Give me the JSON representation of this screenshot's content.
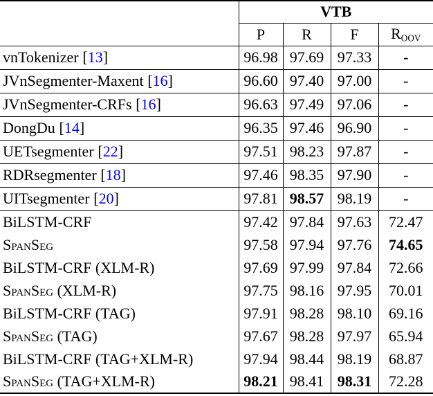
{
  "table": {
    "group_header": "VTB",
    "subcolumns": {
      "p": "P",
      "r": "R",
      "f": "F",
      "roov_base": "R",
      "roov_sub": "OOV"
    },
    "cite_open": "[",
    "cite_close": "]",
    "colors": {
      "citation_link": "#0000FF",
      "text": "#000000",
      "rule": "#000000"
    },
    "rows": [
      {
        "name": "vnTokenizer",
        "cite": "13",
        "sc": false,
        "section": 1,
        "vals": [
          "96.98",
          "97.69",
          "97.33",
          "-"
        ],
        "bold": [
          false,
          false,
          false,
          false
        ]
      },
      {
        "name": "JVnSegmenter-Maxent",
        "cite": "16",
        "sc": false,
        "section": 1,
        "vals": [
          "96.60",
          "97.40",
          "97.00",
          "-"
        ],
        "bold": [
          false,
          false,
          false,
          false
        ]
      },
      {
        "name": "JVnSegmenter-CRFs",
        "cite": "16",
        "sc": false,
        "section": 1,
        "vals": [
          "96.63",
          "97.49",
          "97.06",
          "-"
        ],
        "bold": [
          false,
          false,
          false,
          false
        ]
      },
      {
        "name": "DongDu",
        "cite": "14",
        "sc": false,
        "section": 1,
        "vals": [
          "96.35",
          "97.46",
          "96.90",
          "-"
        ],
        "bold": [
          false,
          false,
          false,
          false
        ]
      },
      {
        "name": "UETsegmenter",
        "cite": "22",
        "sc": false,
        "section": 1,
        "vals": [
          "97.51",
          "98.23",
          "97.87",
          "-"
        ],
        "bold": [
          false,
          false,
          false,
          false
        ]
      },
      {
        "name": "RDRsegmenter",
        "cite": "18",
        "sc": false,
        "section": 1,
        "vals": [
          "97.46",
          "98.35",
          "97.90",
          "-"
        ],
        "bold": [
          false,
          false,
          false,
          false
        ]
      },
      {
        "name": "UITsegmenter",
        "cite": "20",
        "sc": false,
        "section": 1,
        "vals": [
          "97.81",
          "98.57",
          "98.19",
          "-"
        ],
        "bold": [
          false,
          true,
          false,
          false
        ]
      },
      {
        "name": "BiLSTM-CRF",
        "cite": null,
        "sc": false,
        "section": 2,
        "vals": [
          "97.42",
          "97.84",
          "97.63",
          "72.47"
        ],
        "bold": [
          false,
          false,
          false,
          false
        ]
      },
      {
        "name": "SpanSeg",
        "cite": null,
        "sc": true,
        "section": 2,
        "vals": [
          "97.58",
          "97.94",
          "97.76",
          "74.65"
        ],
        "bold": [
          false,
          false,
          false,
          true
        ]
      },
      {
        "name": "BiLSTM-CRF (XLM-R)",
        "cite": null,
        "sc": false,
        "section": 2,
        "vals": [
          "97.69",
          "97.99",
          "97.84",
          "72.66"
        ],
        "bold": [
          false,
          false,
          false,
          false
        ]
      },
      {
        "name": "SpanSeg (XLM-R)",
        "cite": null,
        "sc": true,
        "section": 2,
        "vals": [
          "97.75",
          "98.16",
          "97.95",
          "70.01"
        ],
        "bold": [
          false,
          false,
          false,
          false
        ]
      },
      {
        "name": "BiLSTM-CRF (TAG)",
        "cite": null,
        "sc": false,
        "section": 2,
        "vals": [
          "97.91",
          "98.28",
          "98.10",
          "69.16"
        ],
        "bold": [
          false,
          false,
          false,
          false
        ]
      },
      {
        "name": "SpanSeg (TAG)",
        "cite": null,
        "sc": true,
        "section": 2,
        "vals": [
          "97.67",
          "98.28",
          "97.97",
          "65.94"
        ],
        "bold": [
          false,
          false,
          false,
          false
        ]
      },
      {
        "name": "BiLSTM-CRF (TAG+XLM-R)",
        "cite": null,
        "sc": false,
        "section": 2,
        "vals": [
          "97.94",
          "98.44",
          "98.19",
          "68.87"
        ],
        "bold": [
          false,
          false,
          false,
          false
        ]
      },
      {
        "name": "SpanSeg (TAG+XLM-R)",
        "cite": null,
        "sc": true,
        "section": 2,
        "vals": [
          "98.21",
          "98.41",
          "98.31",
          "72.28"
        ],
        "bold": [
          true,
          false,
          true,
          false
        ]
      }
    ]
  }
}
